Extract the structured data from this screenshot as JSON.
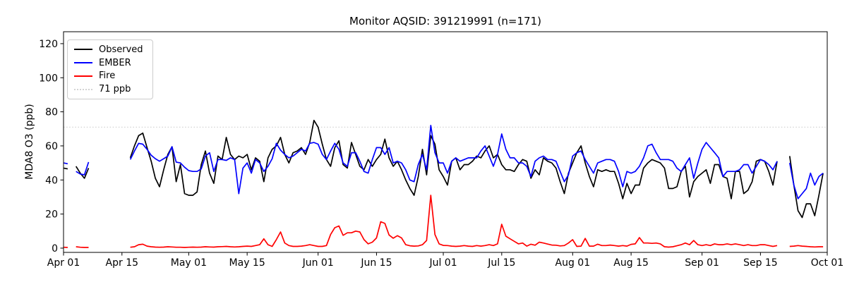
{
  "chart_data": {
    "type": "line",
    "title": "Monitor AQSID: 391219991 (n=171)",
    "xlabel": "",
    "ylabel": "MDA8 O3 (ppb)",
    "n_points": 171,
    "grid": false,
    "legend_position": "upper-left",
    "ylim": [
      -2.5,
      127
    ],
    "x_range_days": [
      0,
      183
    ],
    "x_start_date": "Apr 01",
    "x_end_date": "Oct 01",
    "y_ticks": [
      0,
      20,
      40,
      60,
      80,
      100,
      120
    ],
    "x_ticks": [
      {
        "day": 0,
        "label": "Apr 01"
      },
      {
        "day": 14,
        "label": "Apr 15"
      },
      {
        "day": 30,
        "label": "May 01"
      },
      {
        "day": 44,
        "label": "May 15"
      },
      {
        "day": 61,
        "label": "Jun 01"
      },
      {
        "day": 75,
        "label": "Jun 15"
      },
      {
        "day": 91,
        "label": "Jul 01"
      },
      {
        "day": 105,
        "label": "Jul 15"
      },
      {
        "day": 122,
        "label": "Aug 01"
      },
      {
        "day": 136,
        "label": "Aug 15"
      },
      {
        "day": 153,
        "label": "Sep 01"
      },
      {
        "day": 167,
        "label": "Sep 15"
      },
      {
        "day": 183,
        "label": "Oct 01"
      }
    ],
    "threshold": {
      "value": 71,
      "label": "71 ppb",
      "color": "#d3d3d3",
      "style": "dotted"
    },
    "legend_items": [
      {
        "label": "Observed",
        "color": "#000000",
        "style": "solid"
      },
      {
        "label": "EMBER",
        "color": "#0000ff",
        "style": "solid"
      },
      {
        "label": "Fire",
        "color": "#ff0000",
        "style": "solid"
      },
      {
        "label": "71 ppb",
        "color": "#d3d3d3",
        "style": "dotted"
      }
    ],
    "series": [
      {
        "name": "Observed",
        "color": "#000000",
        "segments": [
          {
            "start_day": 0,
            "values": [
              47,
              46.5
            ]
          },
          {
            "start_day": 3,
            "values": [
              48,
              44,
              41,
              47
            ]
          },
          {
            "start_day": 16,
            "values": [
              53,
              60,
              66,
              67.5,
              59,
              51,
              41,
              36,
              46,
              55,
              59.5,
              39,
              49,
              32,
              31,
              31,
              33,
              49,
              57,
              44,
              38,
              54,
              52,
              65,
              55,
              52,
              54,
              53,
              55,
              46,
              53,
              51,
              39,
              53,
              58,
              60,
              65,
              55,
              50,
              56,
              57,
              59,
              55,
              62,
              75,
              71,
              61,
              52,
              48,
              59,
              63,
              49,
              47,
              62,
              55,
              48,
              46,
              52,
              48,
              52,
              55,
              64,
              53,
              48,
              51,
              46,
              40,
              35,
              31,
              42,
              58,
              43,
              66,
              61,
              46,
              42,
              37,
              51,
              53,
              46,
              49,
              49,
              51,
              54,
              53,
              57,
              60,
              53,
              55,
              49,
              46,
              46,
              45,
              49,
              52,
              51,
              41,
              46,
              43,
              53,
              51,
              50,
              47,
              39,
              32,
              44,
              50,
              56,
              60,
              50,
              42,
              36,
              46,
              45,
              46,
              45,
              45,
              38,
              29,
              38,
              32,
              37,
              37,
              47,
              50,
              52,
              51,
              50,
              47,
              35,
              35,
              36,
              45,
              48,
              30,
              39,
              42,
              44,
              46,
              38,
              49,
              49,
              42,
              41,
              29,
              45,
              45,
              32,
              34,
              39,
              51,
              52,
              51,
              45,
              37,
              51
            ]
          },
          {
            "start_day": 174,
            "values": [
              54,
              37,
              22,
              18,
              26,
              26,
              19,
              31,
              44
            ]
          }
        ]
      },
      {
        "name": "EMBER",
        "color": "#0000ff",
        "segments": [
          {
            "start_day": 0,
            "values": [
              50,
              49.5
            ]
          },
          {
            "start_day": 3,
            "values": [
              45,
              43.5,
              43,
              50.5
            ]
          },
          {
            "start_day": 16,
            "values": [
              52,
              57,
              61.5,
              61,
              58,
              54.5,
              52.5,
              51,
              52.5,
              54,
              59.5,
              50.5,
              50,
              47.5,
              45.5,
              45,
              45,
              46.5,
              54,
              56,
              45,
              52,
              52,
              51.5,
              53,
              52,
              32,
              47,
              50,
              44,
              52,
              50,
              45,
              48,
              52.5,
              61.5,
              57.5,
              55,
              53,
              54,
              56,
              58,
              57,
              61.5,
              62,
              61,
              55,
              52,
              57,
              61.5,
              58,
              50,
              48,
              56,
              56,
              51,
              45,
              44,
              52,
              59,
              59,
              55,
              59,
              50,
              51,
              50,
              46,
              40,
              39,
              49,
              55,
              46,
              72,
              56,
              50,
              50,
              44,
              51,
              53,
              51,
              52,
              53,
              53,
              53,
              57,
              60,
              54,
              48,
              55,
              67,
              58,
              53,
              53,
              50,
              50,
              48,
              42,
              51,
              53,
              54,
              52,
              52,
              51,
              45,
              39,
              43,
              54,
              56,
              57,
              52,
              48,
              44,
              50,
              51,
              52,
              52,
              51,
              45,
              36,
              45,
              44,
              45,
              48,
              53,
              60,
              61,
              56,
              52,
              52,
              52,
              51,
              47,
              45,
              49,
              53,
              41,
              50,
              58,
              62,
              59,
              56,
              53,
              42,
              45,
              45,
              45,
              46,
              49,
              49,
              44,
              48,
              52,
              51,
              49,
              46,
              51
            ]
          },
          {
            "start_day": 174,
            "values": [
              50,
              37,
              29,
              32,
              35,
              44,
              37,
              42,
              44
            ]
          }
        ]
      },
      {
        "name": "Fire",
        "color": "#ff0000",
        "segments": [
          {
            "start_day": 0,
            "values": [
              0.5,
              0.4
            ]
          },
          {
            "start_day": 3,
            "values": [
              0.8,
              0.5,
              0.4,
              0.4
            ]
          },
          {
            "start_day": 16,
            "values": [
              0.5,
              0.8,
              2,
              2.3,
              1.2,
              0.8,
              0.6,
              0.5,
              0.6,
              0.8,
              0.7,
              0.5,
              0.5,
              0.4,
              0.5,
              0.6,
              0.5,
              0.6,
              0.8,
              0.7,
              0.6,
              0.8,
              0.9,
              1,
              0.8,
              0.7,
              0.8,
              1,
              1.2,
              1,
              1.5,
              2,
              5.5,
              2,
              1,
              5,
              9.5,
              3,
              1.5,
              1,
              1,
              1.2,
              1.5,
              2,
              1.5,
              1,
              1,
              1.5,
              8,
              12,
              13,
              7.5,
              9,
              9,
              10,
              9.5,
              5,
              2.5,
              3.5,
              6,
              15.5,
              14.5,
              7.7,
              5.8,
              7.3,
              6,
              2,
              1.4,
              1.2,
              1.3,
              2,
              4.5,
              31,
              8,
              2.5,
              1.6,
              1.5,
              1.2,
              1,
              1.2,
              1.5,
              1.2,
              1,
              1.5,
              1.2,
              1.5,
              2,
              1.5,
              2.5,
              14,
              7,
              5.5,
              4,
              2.5,
              3,
              1.2,
              2.3,
              1.7,
              3.5,
              3,
              2.4,
              1.8,
              1.7,
              1.3,
              1.5,
              3,
              5,
              1,
              1.2,
              5.7,
              1.2,
              1.2,
              2.3,
              1.5,
              1.5,
              1.8,
              1.5,
              1.2,
              1.5,
              1.2,
              2.2,
              2.5,
              6.2,
              3,
              3,
              2.8,
              3,
              2.5,
              0.8,
              0.6,
              0.8,
              1.4,
              2,
              3,
              2,
              4.5,
              2,
              1.5,
              2,
              1.5,
              2.5,
              2,
              2,
              2.5,
              2,
              2.5,
              2,
              1.5,
              2,
              1.5,
              1.5,
              2,
              2,
              1.5,
              1,
              1.5
            ]
          },
          {
            "start_day": 174,
            "values": [
              1,
              1.2,
              1.5,
              1.2,
              1,
              0.8,
              0.7,
              0.8,
              0.8
            ]
          }
        ]
      }
    ]
  }
}
